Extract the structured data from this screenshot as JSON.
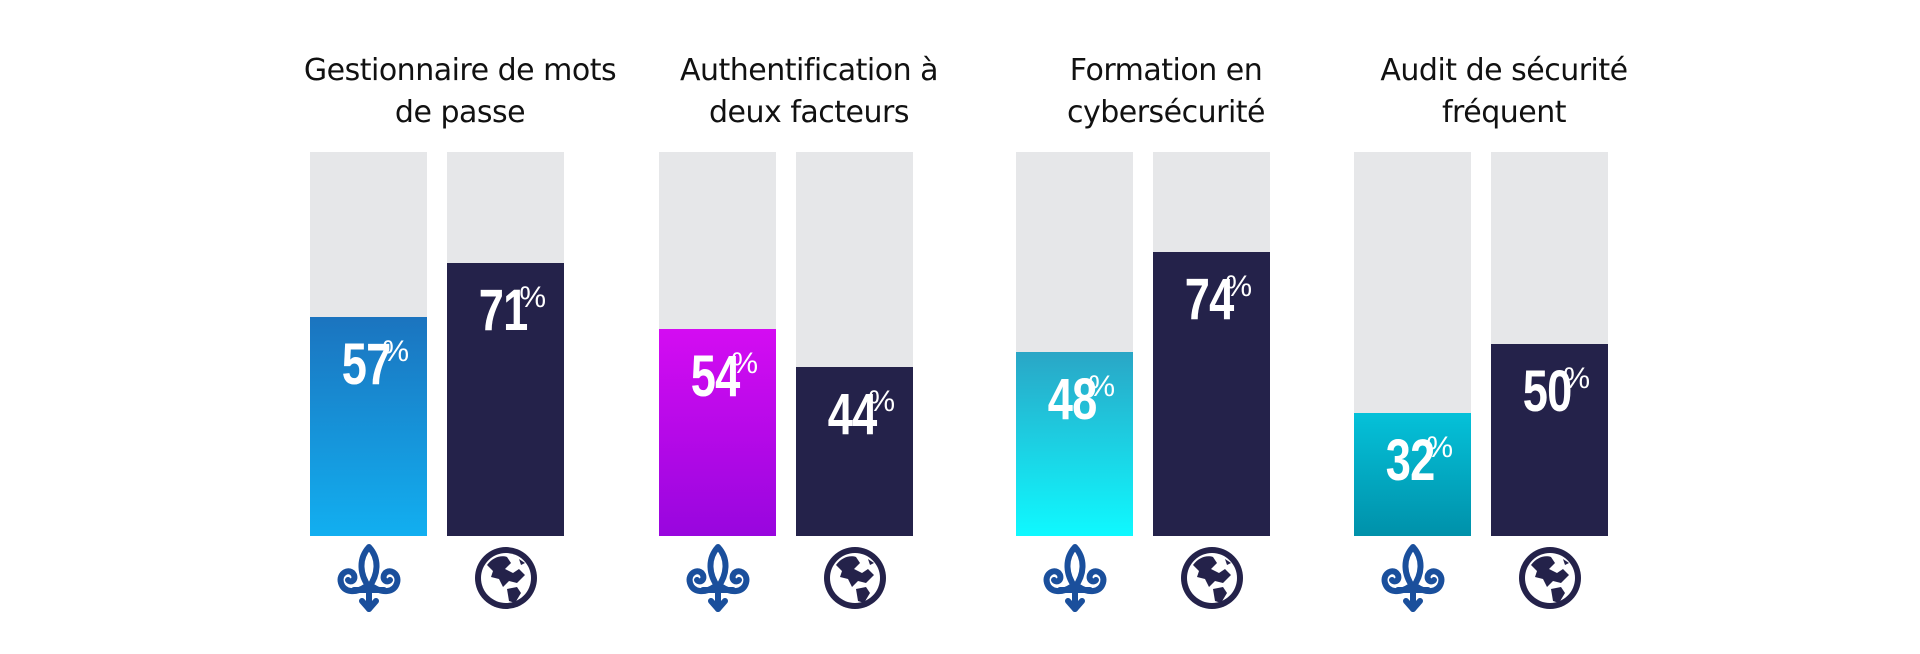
{
  "chart_data": {
    "type": "bar",
    "categories": [
      "Gestionnaire de mots de passe",
      "Authentification à deux facteurs",
      "Formation en cybersécurité",
      "Audit de sécurité fréquent"
    ],
    "category_lines": [
      [
        "Gestionnaire de mots",
        "de passe"
      ],
      [
        "Authentification à",
        "deux facteurs"
      ],
      [
        "Formation en",
        "cybersécurité"
      ],
      [
        "Audit de sécurité",
        "fréquent"
      ]
    ],
    "series": [
      {
        "icon": "fleur-de-lis-icon",
        "values": [
          57,
          54,
          48,
          32
        ],
        "colors": [
          [
            "#1b74bf",
            "#12aff0"
          ],
          [
            "#d40cf2",
            "#9806de"
          ],
          [
            "#2aa6c6",
            "#0ff9ff"
          ],
          [
            "#05c1d9",
            "#0091aa"
          ]
        ]
      },
      {
        "icon": "globe-icon",
        "values": [
          71,
          44,
          74,
          50
        ],
        "colors": [
          [
            "#24224a",
            "#24224a"
          ]
        ]
      }
    ],
    "unit": "%",
    "ylim": [
      0,
      100
    ],
    "background_color": "#e6e7e9",
    "icon_colors": {
      "fleur-de-lis-icon": "#1a4f9c",
      "globe-icon": "#24224a"
    }
  }
}
